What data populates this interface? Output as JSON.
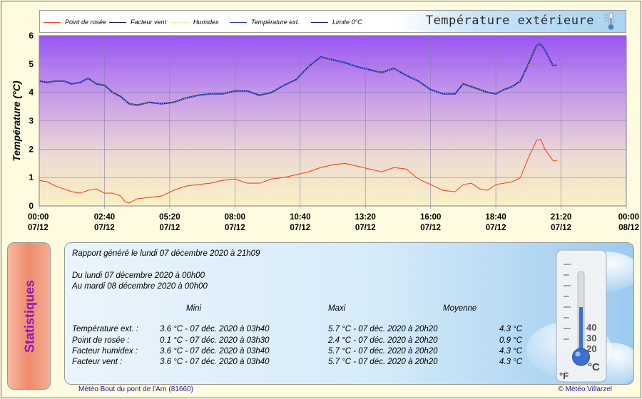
{
  "legend": [
    {
      "label": "Point de rosée",
      "color": "#ee4a22",
      "style": "solid"
    },
    {
      "label": "Facteur vent",
      "color": "#1a1a66",
      "style": "solid"
    },
    {
      "label": "Humidex",
      "color": "#e8e060",
      "style": "dotted"
    },
    {
      "label": "Température ext.",
      "color": "#2a3acc",
      "style": "solid"
    },
    {
      "label": "Limite 0°C",
      "color": "#1a1a66",
      "style": "solid"
    }
  ],
  "chart_title": "Température extérieure",
  "chart_data": {
    "type": "line",
    "title": "Température extérieure",
    "ylabel": "Température (°C)",
    "xlabel": "",
    "ylim": [
      0,
      6
    ],
    "yticks": [
      "0",
      "1",
      "2",
      "3",
      "4",
      "5",
      "6"
    ],
    "xlim_hours": [
      0,
      24
    ],
    "xticks": [
      {
        "time": "00:00",
        "date": "07/12"
      },
      {
        "time": "02:40",
        "date": "07/12"
      },
      {
        "time": "05:20",
        "date": "07/12"
      },
      {
        "time": "08:00",
        "date": "07/12"
      },
      {
        "time": "10:40",
        "date": "07/12"
      },
      {
        "time": "13:20",
        "date": "07/12"
      },
      {
        "time": "16:00",
        "date": "07/12"
      },
      {
        "time": "18:40",
        "date": "07/12"
      },
      {
        "time": "21:20",
        "date": "07/12"
      },
      {
        "time": "00:00",
        "date": "08/12"
      }
    ],
    "grid": true,
    "background": "gradient purple (top) to pale yellow (bottom)",
    "series": [
      {
        "name": "Température ext.",
        "color": "#2a3acc",
        "x_hours": [
          0,
          0.33,
          0.67,
          1,
          1.33,
          1.67,
          2,
          2.33,
          2.67,
          3,
          3.33,
          3.67,
          4,
          4.5,
          5,
          5.5,
          6,
          6.5,
          7,
          7.5,
          8,
          8.5,
          9,
          9.5,
          10,
          10.5,
          11,
          11.5,
          12,
          12.5,
          13,
          13.5,
          14,
          14.5,
          15,
          15.5,
          16,
          16.5,
          17,
          17.33,
          17.67,
          18,
          18.33,
          18.67,
          19,
          19.33,
          19.67,
          20,
          20.33,
          20.5,
          20.67,
          21,
          21.17
        ],
        "values": [
          4.4,
          4.35,
          4.4,
          4.4,
          4.3,
          4.35,
          4.5,
          4.3,
          4.25,
          4.0,
          3.85,
          3.6,
          3.55,
          3.65,
          3.6,
          3.65,
          3.8,
          3.9,
          3.95,
          3.95,
          4.05,
          4.05,
          3.9,
          4.0,
          4.25,
          4.45,
          4.9,
          5.25,
          5.15,
          5.05,
          4.9,
          4.8,
          4.7,
          4.85,
          4.6,
          4.4,
          4.1,
          3.95,
          3.95,
          4.3,
          4.2,
          4.1,
          4.0,
          3.95,
          4.1,
          4.2,
          4.4,
          5.0,
          5.65,
          5.7,
          5.5,
          4.95,
          4.95
        ]
      },
      {
        "name": "Facteur vent",
        "color": "#1a1a66",
        "x_hours": [
          0,
          0.33,
          0.67,
          1,
          1.33,
          1.67,
          2,
          2.33,
          2.67,
          3,
          3.33,
          3.67,
          4,
          4.5,
          5,
          5.5,
          6,
          6.5,
          7,
          7.5,
          8,
          8.5,
          9,
          9.5,
          10,
          10.5,
          11,
          11.5,
          12,
          12.5,
          13,
          13.5,
          14,
          14.5,
          15,
          15.5,
          16,
          16.5,
          17,
          17.33,
          17.67,
          18,
          18.33,
          18.67,
          19,
          19.33,
          19.67,
          20,
          20.33,
          20.5,
          20.67,
          21,
          21.17
        ],
        "values": [
          4.4,
          4.35,
          4.4,
          4.4,
          4.3,
          4.35,
          4.5,
          4.3,
          4.25,
          4.0,
          3.85,
          3.6,
          3.55,
          3.65,
          3.6,
          3.65,
          3.8,
          3.9,
          3.95,
          3.95,
          4.05,
          4.05,
          3.9,
          4.0,
          4.25,
          4.45,
          4.9,
          5.25,
          5.15,
          5.05,
          4.9,
          4.8,
          4.7,
          4.85,
          4.6,
          4.4,
          4.1,
          3.95,
          3.95,
          4.3,
          4.2,
          4.1,
          4.0,
          3.95,
          4.1,
          4.2,
          4.4,
          5.0,
          5.65,
          5.7,
          5.5,
          4.95,
          4.95
        ]
      },
      {
        "name": "Point de rosée",
        "color": "#ee4a22",
        "x_hours": [
          0,
          0.33,
          0.67,
          1,
          1.33,
          1.67,
          2,
          2.33,
          2.67,
          3,
          3.33,
          3.5,
          3.67,
          4,
          4.5,
          5,
          5.5,
          6,
          6.5,
          7,
          7.5,
          8,
          8.5,
          9,
          9.5,
          10,
          10.5,
          11,
          11.5,
          12,
          12.5,
          13,
          13.5,
          14,
          14.5,
          15,
          15.5,
          16,
          16.5,
          17,
          17.33,
          17.67,
          18,
          18.33,
          18.67,
          19,
          19.33,
          19.67,
          20,
          20.33,
          20.5,
          20.67,
          21,
          21.17
        ],
        "values": [
          0.9,
          0.85,
          0.7,
          0.6,
          0.5,
          0.45,
          0.55,
          0.6,
          0.45,
          0.45,
          0.35,
          0.15,
          0.1,
          0.25,
          0.3,
          0.35,
          0.55,
          0.7,
          0.75,
          0.8,
          0.9,
          0.95,
          0.8,
          0.8,
          0.95,
          1.0,
          1.1,
          1.2,
          1.35,
          1.45,
          1.5,
          1.4,
          1.3,
          1.2,
          1.35,
          1.3,
          0.95,
          0.75,
          0.55,
          0.5,
          0.75,
          0.8,
          0.6,
          0.55,
          0.75,
          0.8,
          0.85,
          1.0,
          1.7,
          2.3,
          2.35,
          2.0,
          1.6,
          1.6
        ]
      },
      {
        "name": "Humidex",
        "color": "#e8e060",
        "x_hours": [
          0,
          0.33,
          0.67,
          1,
          1.33,
          1.67,
          2,
          2.33,
          2.67,
          3,
          3.33,
          3.67,
          4,
          4.5,
          5,
          5.5,
          6,
          6.5,
          7,
          7.5,
          8,
          8.5,
          9,
          9.5,
          10,
          10.5,
          11,
          11.5,
          12,
          12.5,
          13,
          13.5,
          14,
          14.5,
          15,
          15.5,
          16,
          16.5,
          17,
          17.33,
          17.67,
          18,
          18.33,
          18.67,
          19,
          19.33,
          19.67,
          20,
          20.33,
          20.5,
          20.67,
          21,
          21.17
        ],
        "values": [
          4.4,
          4.35,
          4.4,
          4.4,
          4.3,
          4.35,
          4.5,
          4.3,
          4.25,
          4.0,
          3.85,
          3.6,
          3.55,
          3.65,
          3.6,
          3.65,
          3.8,
          3.9,
          3.95,
          3.95,
          4.05,
          4.05,
          3.9,
          4.0,
          4.25,
          4.45,
          4.9,
          5.25,
          5.15,
          5.05,
          4.9,
          4.8,
          4.7,
          4.85,
          4.6,
          4.4,
          4.1,
          3.95,
          3.95,
          4.3,
          4.2,
          4.1,
          4.0,
          3.95,
          4.1,
          4.2,
          4.4,
          5.0,
          5.65,
          5.7,
          5.5,
          4.95,
          4.95
        ]
      }
    ]
  },
  "stats": {
    "side_title": "Statistiques",
    "report_line": "Rapport généré le lundi 07 décembre 2020 à 21h09",
    "from_line": "Du lundi 07 décembre 2020 à 00h00",
    "to_line": "Au mardi 08 décembre 2020 à 00h00",
    "col_mini": "Mini",
    "col_maxi": "Maxi",
    "col_moyenne": "Moyenne",
    "rows": [
      {
        "label": "Température ext. :",
        "mini": "3.6 °C - 07 déc. 2020 à 03h40",
        "maxi": "5.7 °C - 07 déc. 2020 à 20h20",
        "moyenne": "4.3 °C"
      },
      {
        "label": "Point de rosée :",
        "mini": "0.1 °C - 07 déc. 2020 à 03h30",
        "maxi": "2.4 °C - 07 déc. 2020 à 20h20",
        "moyenne": "0.9 °C"
      },
      {
        "label": "Facteur humidex :",
        "mini": "3.6 °C - 07 déc. 2020 à 03h40",
        "maxi": "5.7 °C - 07 déc. 2020 à 20h20",
        "moyenne": "4.3 °C"
      },
      {
        "label": "Facteur vent :",
        "mini": "3.6 °C - 07 déc. 2020 à 03h40",
        "maxi": "5.7 °C - 07 déc. 2020 à 20h20",
        "moyenne": "4.3 °C"
      }
    ],
    "thermo_scale": [
      "20",
      "30",
      "40"
    ],
    "unit_f": "°F",
    "unit_c": "°C"
  },
  "footer": {
    "left": "Météo Bout du pont de l'Arn (81660)",
    "right": "© Météo Villarzel"
  }
}
